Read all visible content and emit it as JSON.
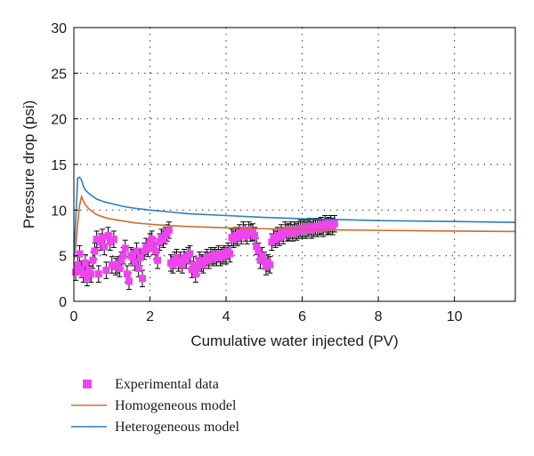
{
  "chart_data": {
    "type": "scatter",
    "xlabel": "Cumulative water injected (PV)",
    "ylabel": "Pressure drop (psi)",
    "xlim": [
      0,
      11.6
    ],
    "ylim": [
      0,
      30
    ],
    "x_ticks": [
      "0",
      "2",
      "4",
      "6",
      "8",
      "10"
    ],
    "y_ticks": [
      "0",
      "5",
      "10",
      "15",
      "20",
      "25",
      "30"
    ],
    "grid": true,
    "legend_position": "below-left",
    "series": [
      {
        "name": "Experimental data",
        "kind": "scatter",
        "color": "#ee44ee",
        "marker": "square",
        "error_bar": 0.9,
        "x": [
          0.05,
          0.1,
          0.15,
          0.2,
          0.25,
          0.3,
          0.35,
          0.4,
          0.45,
          0.5,
          0.55,
          0.6,
          0.65,
          0.7,
          0.75,
          0.8,
          0.85,
          0.9,
          0.95,
          1.0,
          1.05,
          1.1,
          1.15,
          1.2,
          1.25,
          1.3,
          1.35,
          1.4,
          1.45,
          1.5,
          1.55,
          1.6,
          1.65,
          1.7,
          1.75,
          1.8,
          1.85,
          1.9,
          1.95,
          2.0,
          2.05,
          2.1,
          2.15,
          2.2,
          2.25,
          2.3,
          2.35,
          2.4,
          2.45,
          2.5,
          2.55,
          2.6,
          2.65,
          2.7,
          2.75,
          2.8,
          2.85,
          2.9,
          2.95,
          3.0,
          3.05,
          3.1,
          3.15,
          3.2,
          3.25,
          3.3,
          3.35,
          3.4,
          3.45,
          3.5,
          3.55,
          3.6,
          3.65,
          3.7,
          3.75,
          3.8,
          3.85,
          3.9,
          3.95,
          4.0,
          4.05,
          4.1,
          4.15,
          4.2,
          4.25,
          4.3,
          4.35,
          4.4,
          4.45,
          4.5,
          4.55,
          4.6,
          4.65,
          4.7,
          4.75,
          4.8,
          4.85,
          4.9,
          4.95,
          5.0,
          5.05,
          5.1,
          5.15,
          5.2,
          5.25,
          5.3,
          5.35,
          5.4,
          5.45,
          5.5,
          5.55,
          5.6,
          5.65,
          5.7,
          5.75,
          5.8,
          5.85,
          5.9,
          5.95,
          6.0,
          6.05,
          6.1,
          6.15,
          6.2,
          6.25,
          6.3,
          6.35,
          6.4,
          6.45,
          6.5,
          6.55,
          6.6,
          6.65,
          6.7,
          6.75,
          6.8,
          6.85
        ],
        "y": [
          3.2,
          4.0,
          5.2,
          3.5,
          3.0,
          4.2,
          2.6,
          3.4,
          3.0,
          4.5,
          5.5,
          6.8,
          3.0,
          6.5,
          7.0,
          6.0,
          3.4,
          7.2,
          6.5,
          4.0,
          6.8,
          3.8,
          4.0,
          3.6,
          4.5,
          5.0,
          5.8,
          3.0,
          2.2,
          5.0,
          4.8,
          4.3,
          5.5,
          3.6,
          4.8,
          2.5,
          5.5,
          6.0,
          5.8,
          6.5,
          6.8,
          6.0,
          5.5,
          4.5,
          6.5,
          7.0,
          6.8,
          7.2,
          7.5,
          7.8,
          4.2,
          4.0,
          4.5,
          4.8,
          4.2,
          4.5,
          4.0,
          4.8,
          4.5,
          5.0,
          5.2,
          3.5,
          4.0,
          3.0,
          3.8,
          4.5,
          4.2,
          4.0,
          4.5,
          4.8,
          4.5,
          5.0,
          4.8,
          5.0,
          4.8,
          5.2,
          4.8,
          5.0,
          5.2,
          5.0,
          5.5,
          5.2,
          7.0,
          6.8,
          7.2,
          7.0,
          7.5,
          7.2,
          7.8,
          7.5,
          7.2,
          7.8,
          7.5,
          7.6,
          7.2,
          6.0,
          5.5,
          4.5,
          5.0,
          4.5,
          3.8,
          4.2,
          4.0,
          6.5,
          7.0,
          6.8,
          7.2,
          7.0,
          7.5,
          7.2,
          7.8,
          7.5,
          7.6,
          7.8,
          7.5,
          7.8,
          7.6,
          7.8,
          8.0,
          7.8,
          8.0,
          7.8,
          8.0,
          8.2,
          7.8,
          8.0,
          8.2,
          8.0,
          8.2,
          8.3,
          8.0,
          8.5,
          8.2,
          8.3,
          8.5,
          8.2,
          8.5
        ]
      },
      {
        "name": "Homogeneous model",
        "kind": "line",
        "color": "#d46a2e",
        "x": [
          0,
          0.05,
          0.1,
          0.15,
          0.2,
          0.25,
          0.3,
          0.4,
          0.5,
          0.6,
          0.8,
          1.0,
          1.3,
          1.6,
          2.0,
          2.5,
          3.0,
          4.0,
          5.0,
          6.0,
          7.0,
          8.0,
          9.0,
          10.0,
          11.6
        ],
        "y": [
          4.5,
          6.0,
          8.5,
          10.5,
          11.5,
          11.0,
          10.6,
          10.1,
          9.8,
          9.5,
          9.2,
          9.0,
          8.8,
          8.6,
          8.45,
          8.3,
          8.2,
          8.05,
          7.95,
          7.88,
          7.82,
          7.78,
          7.74,
          7.7,
          7.65
        ]
      },
      {
        "name": "Heterogeneous model",
        "kind": "line",
        "color": "#2b7fc0",
        "x": [
          0,
          0.05,
          0.1,
          0.15,
          0.2,
          0.25,
          0.3,
          0.4,
          0.5,
          0.6,
          0.8,
          1.0,
          1.3,
          1.6,
          2.0,
          2.5,
          3.0,
          4.0,
          5.0,
          6.0,
          7.0,
          8.0,
          9.0,
          10.0,
          11.6
        ],
        "y": [
          4.8,
          9.0,
          13.5,
          13.6,
          13.3,
          12.6,
          12.2,
          11.8,
          11.5,
          11.2,
          10.9,
          10.7,
          10.4,
          10.2,
          10.0,
          9.8,
          9.6,
          9.4,
          9.2,
          9.05,
          8.95,
          8.85,
          8.8,
          8.75,
          8.65
        ]
      }
    ]
  }
}
